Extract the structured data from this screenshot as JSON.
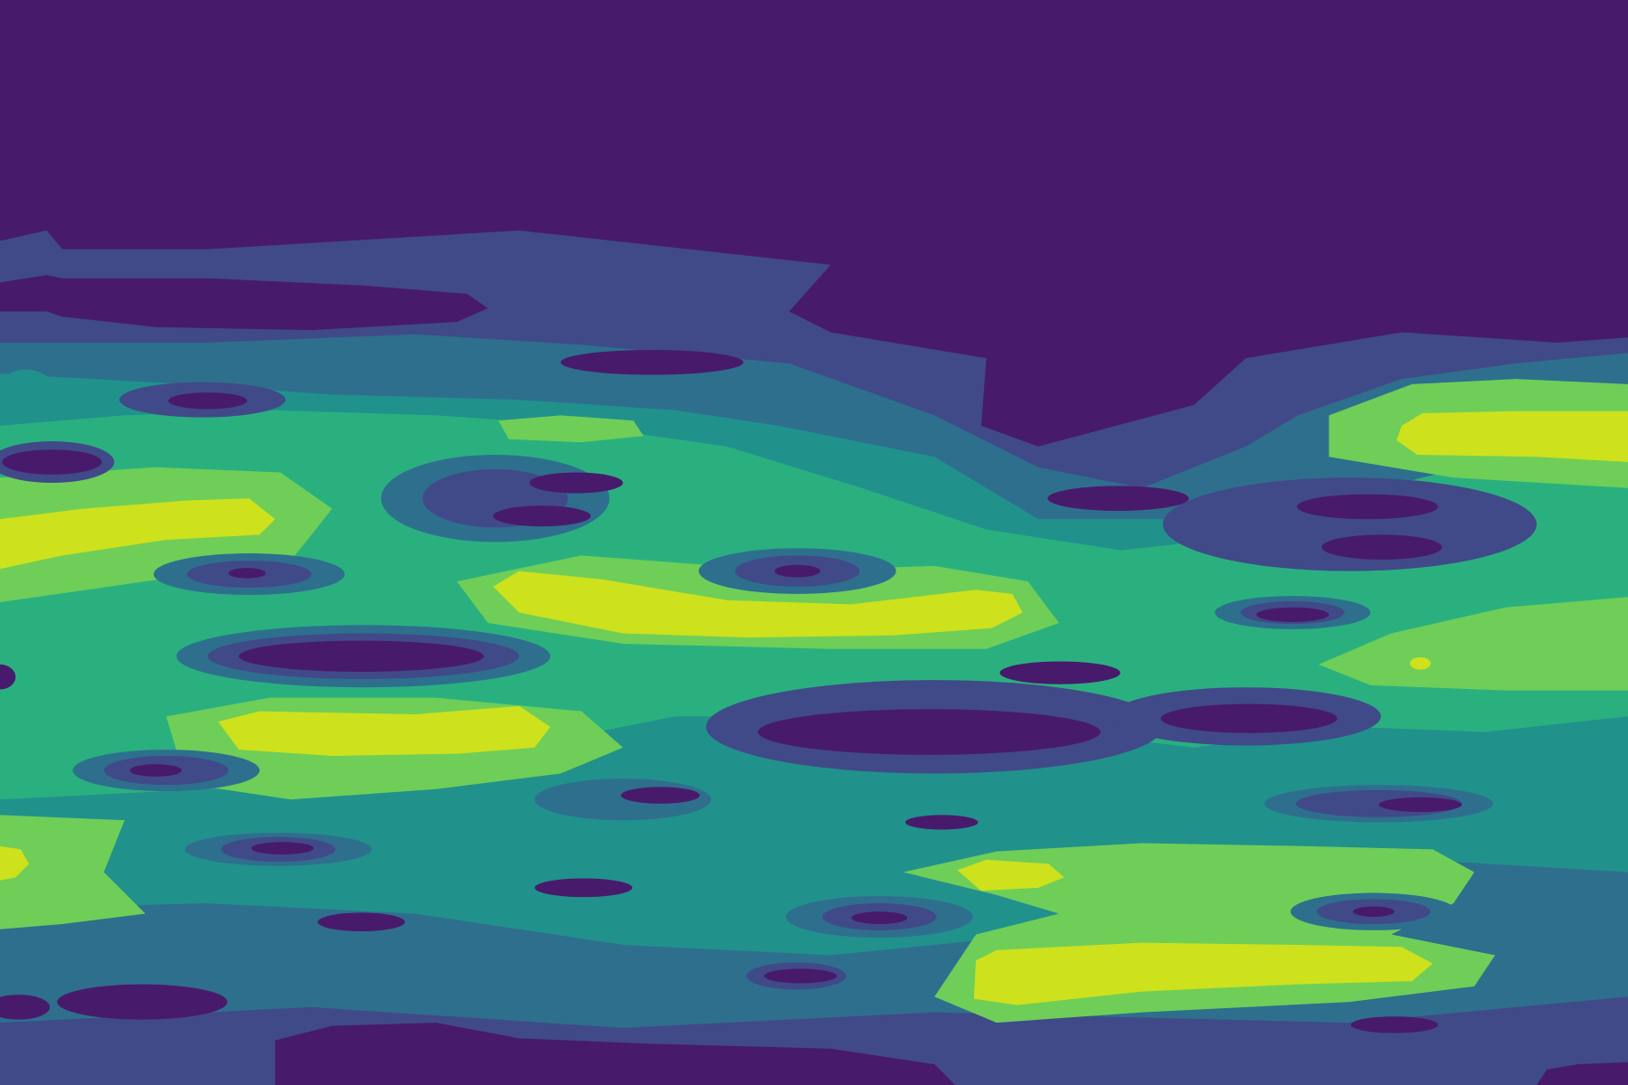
{
  "chart_data": {
    "type": "heatmap",
    "style": "filled-contour",
    "colormap": "viridis",
    "levels": 7,
    "palette": [
      "#481a6c",
      "#404a88",
      "#2e6f8e",
      "#21918c",
      "#2ab07f",
      "#6ece58",
      "#cde11d"
    ],
    "title": "",
    "xlabel": "",
    "ylabel": "",
    "axes_visible": false,
    "grid": false,
    "legend": "none",
    "colorbar": "none"
  }
}
